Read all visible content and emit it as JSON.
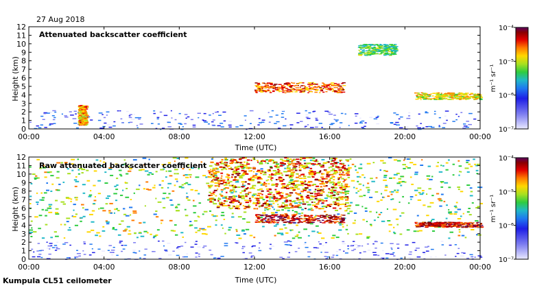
{
  "date_label": "27 Aug 2018",
  "footer": "Kumpula CL51 ceilometer",
  "colors": {
    "colormap": [
      "#e9e9ff",
      "#7b7bf0",
      "#1e1ee6",
      "#1f78f0",
      "#20b8c8",
      "#2ecc40",
      "#a8e020",
      "#ffd700",
      "#ff7a00",
      "#e00000",
      "#8b0000",
      "#5a0060"
    ],
    "frame": "#000000",
    "background": "#ffffff"
  },
  "chart_data": [
    {
      "type": "heatmap",
      "title": "Attenuated backscatter coefficient",
      "xlabel": "Time (UTC)",
      "ylabel": "Height (km)",
      "x_ticks": [
        "00:00",
        "04:00",
        "08:00",
        "12:00",
        "16:00",
        "20:00",
        "00:00"
      ],
      "x_range_hours": [
        0,
        24
      ],
      "y_ticks": [
        "0",
        "1",
        "2",
        "3",
        "4",
        "5",
        "6",
        "7",
        "8",
        "9",
        "10",
        "11",
        "12"
      ],
      "y_range_km": [
        0,
        12
      ],
      "colorbar": {
        "unit": "m⁻¹ sr⁻¹",
        "ticks": [
          "10⁻⁷",
          "10⁻⁶",
          "10⁻⁵",
          "10⁻⁴"
        ],
        "log_range": [
          -7,
          -4
        ],
        "scale": "log"
      },
      "features": [
        {
          "name": "boundary layer",
          "time_hours": [
            0,
            24
          ],
          "height_km": [
            0,
            2.2
          ],
          "log_value": -6.4
        },
        {
          "name": "aerosol plume",
          "time_hours": [
            2.6,
            3.0
          ],
          "height_km": [
            0.5,
            2.8
          ],
          "log_value": -5.0
        },
        {
          "name": "cloud layer",
          "time_hours": [
            12.0,
            16.7
          ],
          "height_km": [
            4.3,
            5.5
          ],
          "log_value": -4.8
        },
        {
          "name": "cloud layer",
          "time_hours": [
            17.5,
            19.5
          ],
          "height_km": [
            8.7,
            10.0
          ],
          "log_value": -5.6
        },
        {
          "name": "cloud layer",
          "time_hours": [
            20.5,
            24.0
          ],
          "height_km": [
            3.5,
            4.3
          ],
          "log_value": -5.2
        }
      ]
    },
    {
      "type": "heatmap",
      "title": "Raw attenuated backscatter coefficient",
      "xlabel": "Time (UTC)",
      "ylabel": "Height (km)",
      "x_ticks": [
        "00:00",
        "04:00",
        "08:00",
        "12:00",
        "16:00",
        "20:00",
        "00:00"
      ],
      "x_range_hours": [
        0,
        24
      ],
      "y_ticks": [
        "0",
        "1",
        "2",
        "3",
        "4",
        "5",
        "6",
        "7",
        "8",
        "9",
        "10",
        "11",
        "12"
      ],
      "y_range_km": [
        0,
        12
      ],
      "colorbar": {
        "unit": "m⁻¹ sr⁻¹",
        "ticks": [
          "10⁻⁷",
          "10⁻⁶",
          "10⁻⁵",
          "10⁻⁴"
        ],
        "log_range": [
          -7,
          -4
        ],
        "scale": "log"
      },
      "features": [
        {
          "name": "noise background",
          "time_hours": [
            0,
            24
          ],
          "height_km": [
            2.5,
            12
          ],
          "log_value": -5.5
        },
        {
          "name": "daytime noise",
          "time_hours": [
            9.5,
            17.0
          ],
          "height_km": [
            6,
            12
          ],
          "log_value": -4.9
        },
        {
          "name": "boundary layer",
          "time_hours": [
            0,
            24
          ],
          "height_km": [
            0,
            2.2
          ],
          "log_value": -6.5
        },
        {
          "name": "cloud layer",
          "time_hours": [
            12.0,
            16.7
          ],
          "height_km": [
            4.3,
            5.3
          ],
          "log_value": -4.5
        },
        {
          "name": "cloud layer",
          "time_hours": [
            20.5,
            24.0
          ],
          "height_km": [
            3.8,
            4.4
          ],
          "log_value": -4.6
        }
      ]
    }
  ]
}
